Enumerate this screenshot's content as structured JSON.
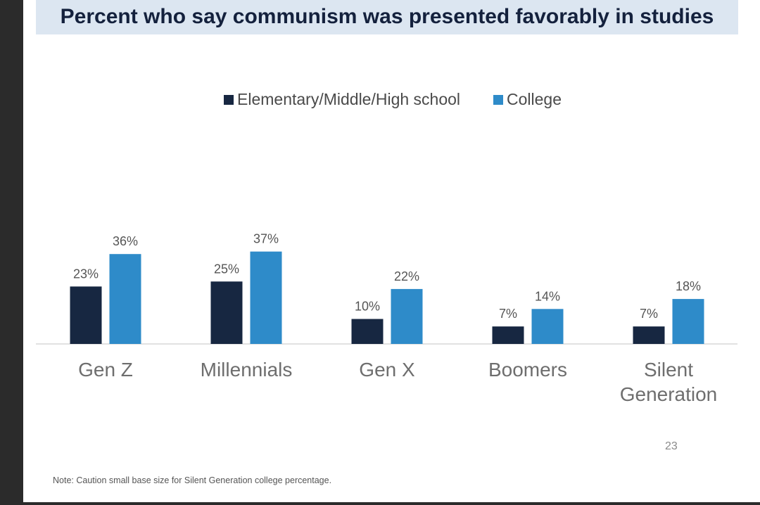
{
  "title": "Percent who say communism was presented favorably in studies",
  "note": "Note: Caution small base size for Silent Generation college percentage.",
  "page_number": "23",
  "colors": {
    "school": "#172741",
    "college": "#2e8bc9",
    "title_bg": "#dce6f1"
  },
  "chart_data": {
    "type": "bar",
    "title": "Percent who say communism was presented favorably in studies",
    "categories": [
      [
        "Gen Z"
      ],
      [
        "Millennials"
      ],
      [
        "Gen X"
      ],
      [
        "Boomers"
      ],
      [
        "Silent",
        "Generation"
      ]
    ],
    "series": [
      {
        "name": "Elementary/Middle/High school",
        "values": [
          23,
          25,
          10,
          7,
          7
        ],
        "labels": [
          "23%",
          "25%",
          "10%",
          "7%",
          "7%"
        ]
      },
      {
        "name": "College",
        "values": [
          36,
          37,
          22,
          14,
          18
        ],
        "labels": [
          "36%",
          "37%",
          "22%",
          "14%",
          "18%"
        ]
      }
    ],
    "ylim": [
      0,
      40
    ],
    "grid": false,
    "legend": "top-center",
    "xlabel": "",
    "ylabel": ""
  }
}
